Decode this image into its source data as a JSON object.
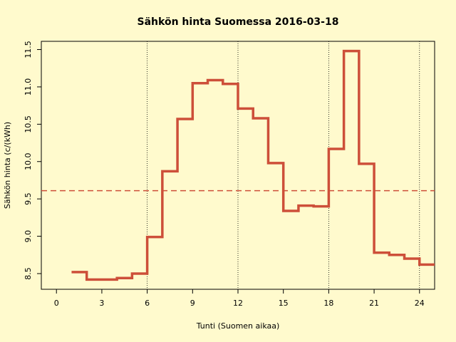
{
  "chart_data": {
    "type": "step",
    "title": "Sähkön hinta Suomessa 2016-03-18",
    "x_label": "Tunti (Suomen aikaa)",
    "y_label": "Sähkön hinta (c/(kWh)",
    "x": [
      1,
      2,
      3,
      4,
      5,
      6,
      7,
      8,
      9,
      10,
      11,
      12,
      13,
      14,
      15,
      16,
      17,
      18,
      19,
      20,
      21,
      22,
      23,
      24,
      25
    ],
    "series": [
      {
        "color": "#cd4f39",
        "values": [
          8.52,
          8.42,
          8.42,
          8.44,
          8.5,
          8.99,
          9.87,
          10.57,
          11.05,
          11.09,
          11.04,
          10.71,
          10.58,
          9.98,
          9.34,
          9.41,
          9.4,
          10.17,
          11.48,
          9.97,
          8.78,
          8.75,
          8.7,
          8.62,
          8.62
        ]
      }
    ],
    "mean_line": 9.61,
    "mean_color": "#cd4f39",
    "vlines": [
      6,
      12,
      18,
      24
    ],
    "xlim": [
      -1,
      25
    ],
    "ylim": [
      8.29,
      11.61
    ],
    "xticks": [
      0,
      3,
      6,
      9,
      12,
      15,
      18,
      21,
      24
    ],
    "yticks": [
      8.5,
      {
        "value": 9,
        "label": "9.0"
      },
      9.5,
      {
        "value": 10,
        "label": "10.0"
      },
      10.5,
      {
        "value": 11,
        "label": "11.0"
      },
      11.5
    ]
  }
}
